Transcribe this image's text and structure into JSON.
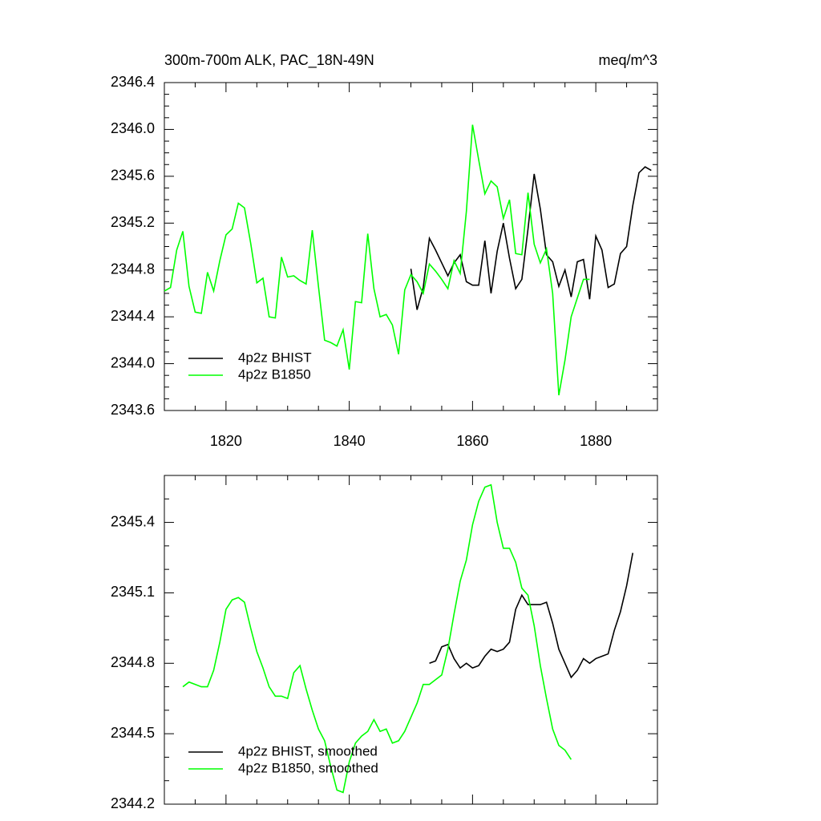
{
  "chart_data": [
    {
      "type": "line",
      "title": "300m-700m ALK, PAC_18N-49N",
      "units": "meq/m^3",
      "xlim": [
        1810,
        1890
      ],
      "xticks": [
        1820,
        1840,
        1860,
        1880
      ],
      "xminorticks": [
        1815,
        1825,
        1830,
        1835,
        1845,
        1850,
        1855,
        1865,
        1870,
        1875,
        1885
      ],
      "ylim": [
        2343.6,
        2346.4
      ],
      "yticks": [
        {
          "value": 2343.6,
          "label": "2343.6"
        },
        {
          "value": 2344,
          "label": "2344.0"
        },
        {
          "value": 2344.4,
          "label": "2344.4"
        },
        {
          "value": 2344.8,
          "label": "2344.8"
        },
        {
          "value": 2345.2,
          "label": "2345.2"
        },
        {
          "value": 2345.6,
          "label": "2345.6"
        },
        {
          "value": 2346,
          "label": "2346.0"
        },
        {
          "value": 2346.4,
          "label": "2346.4"
        }
      ],
      "yminorticks": [
        2343.7,
        2343.8,
        2343.9,
        2344.1,
        2344.2,
        2344.3,
        2344.5,
        2344.6,
        2344.7,
        2344.9,
        2345.0,
        2345.1,
        2345.3,
        2345.4,
        2345.5,
        2345.7,
        2345.8,
        2345.9,
        2346.1,
        2346.2,
        2346.3
      ],
      "legend": "lower left",
      "series": [
        {
          "name": "4p2z BHIST",
          "color": "#000000",
          "x": [
            1850,
            1851,
            1852,
            1853,
            1854,
            1855,
            1856,
            1857,
            1858,
            1859,
            1860,
            1861,
            1862,
            1863,
            1864,
            1865,
            1866,
            1867,
            1868,
            1869,
            1870,
            1871,
            1872,
            1873,
            1874,
            1875,
            1876,
            1877,
            1878,
            1879,
            1880,
            1881,
            1882,
            1883,
            1884,
            1885,
            1886,
            1887,
            1888,
            1889
          ],
          "values": [
            2344.81,
            2344.46,
            2344.65,
            2345.07,
            2344.97,
            2344.86,
            2344.75,
            2344.86,
            2344.93,
            2344.7,
            2344.67,
            2344.67,
            2345.05,
            2344.6,
            2344.96,
            2345.2,
            2344.9,
            2344.64,
            2344.72,
            2345.15,
            2345.62,
            2345.32,
            2344.93,
            2344.87,
            2344.66,
            2344.8,
            2344.57,
            2344.87,
            2344.89,
            2344.55,
            2345.09,
            2344.97,
            2344.65,
            2344.68,
            2344.94,
            2345.0,
            2345.35,
            2345.63,
            2345.68,
            2345.65
          ]
        },
        {
          "name": "4p2z B1850",
          "color": "#00ff00",
          "x": [
            1810,
            1811,
            1812,
            1813,
            1814,
            1815,
            1816,
            1817,
            1818,
            1819,
            1820,
            1821,
            1822,
            1823,
            1824,
            1825,
            1826,
            1827,
            1828,
            1829,
            1830,
            1831,
            1832,
            1833,
            1834,
            1835,
            1836,
            1837,
            1838,
            1839,
            1840,
            1841,
            1842,
            1843,
            1844,
            1845,
            1846,
            1847,
            1848,
            1849,
            1850,
            1851,
            1852,
            1853,
            1854,
            1855,
            1856,
            1857,
            1858,
            1859,
            1860,
            1861,
            1862,
            1863,
            1864,
            1865,
            1866,
            1867,
            1868,
            1869,
            1870,
            1871,
            1872,
            1873,
            1874,
            1875,
            1876,
            1877,
            1878,
            1879
          ],
          "values": [
            2344.62,
            2344.65,
            2344.97,
            2345.13,
            2344.66,
            2344.44,
            2344.43,
            2344.78,
            2344.62,
            2344.88,
            2345.1,
            2345.15,
            2345.37,
            2345.33,
            2345.03,
            2344.69,
            2344.73,
            2344.4,
            2344.39,
            2344.91,
            2344.74,
            2344.75,
            2344.71,
            2344.68,
            2345.14,
            2344.66,
            2344.2,
            2344.18,
            2344.15,
            2344.29,
            2343.95,
            2344.53,
            2344.52,
            2345.11,
            2344.64,
            2344.4,
            2344.42,
            2344.33,
            2344.08,
            2344.63,
            2344.76,
            2344.7,
            2344.6,
            2344.85,
            2344.79,
            2344.72,
            2344.64,
            2344.88,
            2344.77,
            2345.3,
            2346.04,
            2345.74,
            2345.45,
            2345.56,
            2345.51,
            2345.24,
            2345.4,
            2344.94,
            2344.93,
            2345.46,
            2345.02,
            2344.86,
            2344.98,
            2344.6,
            2343.73,
            2344.03,
            2344.4,
            2344.56,
            2344.72,
            2344.72
          ]
        }
      ]
    },
    {
      "type": "line",
      "xlim": [
        1810,
        1890
      ],
      "ylim": [
        2344.2,
        2345.6
      ],
      "yticks": [
        2344.2,
        2344.5,
        2344.8,
        2345.1,
        2345.4
      ],
      "yminorticks": [
        2344.3,
        2344.4,
        2344.6,
        2344.7,
        2344.9,
        2345.0,
        2345.2,
        2345.3,
        2345.5
      ],
      "legend": "lower left",
      "series": [
        {
          "name": "4p2z BHIST, smoothed",
          "color": "#000000",
          "x": [
            1853,
            1854,
            1855,
            1856,
            1857,
            1858,
            1859,
            1860,
            1861,
            1862,
            1863,
            1864,
            1865,
            1866,
            1867,
            1868,
            1869,
            1870,
            1871,
            1872,
            1873,
            1874,
            1875,
            1876,
            1877,
            1878,
            1879,
            1880,
            1881,
            1882,
            1883,
            1884,
            1885,
            1886
          ],
          "values": [
            2344.8,
            2344.81,
            2344.87,
            2344.88,
            2344.82,
            2344.78,
            2344.8,
            2344.78,
            2344.79,
            2344.83,
            2344.86,
            2344.85,
            2344.86,
            2344.89,
            2345.03,
            2345.09,
            2345.05,
            2345.05,
            2345.05,
            2345.06,
            2344.97,
            2344.86,
            2344.8,
            2344.74,
            2344.77,
            2344.82,
            2344.8,
            2344.82,
            2344.83,
            2344.84,
            2344.94,
            2345.02,
            2345.13,
            2345.27
          ]
        },
        {
          "name": "4p2z B1850, smoothed",
          "color": "#00ff00",
          "x": [
            1813,
            1814,
            1815,
            1816,
            1817,
            1818,
            1819,
            1820,
            1821,
            1822,
            1823,
            1824,
            1825,
            1826,
            1827,
            1828,
            1829,
            1830,
            1831,
            1832,
            1833,
            1834,
            1835,
            1836,
            1837,
            1838,
            1839,
            1840,
            1841,
            1842,
            1843,
            1844,
            1845,
            1846,
            1847,
            1848,
            1849,
            1850,
            1851,
            1852,
            1853,
            1854,
            1855,
            1856,
            1857,
            1858,
            1859,
            1860,
            1861,
            1862,
            1863,
            1864,
            1865,
            1866,
            1867,
            1868,
            1869,
            1870,
            1871,
            1872,
            1873,
            1874,
            1875,
            1876
          ],
          "values": [
            2344.7,
            2344.72,
            2344.71,
            2344.7,
            2344.7,
            2344.77,
            2344.89,
            2345.03,
            2345.07,
            2345.08,
            2345.06,
            2344.95,
            2344.85,
            2344.78,
            2344.7,
            2344.66,
            2344.66,
            2344.65,
            2344.76,
            2344.79,
            2344.69,
            2344.6,
            2344.52,
            2344.47,
            2344.36,
            2344.26,
            2344.25,
            2344.38,
            2344.46,
            2344.49,
            2344.51,
            2344.56,
            2344.51,
            2344.52,
            2344.46,
            2344.47,
            2344.51,
            2344.57,
            2344.63,
            2344.71,
            2344.71,
            2344.73,
            2344.75,
            2344.86,
            2345.01,
            2345.15,
            2345.24,
            2345.39,
            2345.49,
            2345.55,
            2345.56,
            2345.4,
            2345.29,
            2345.29,
            2345.23,
            2345.12,
            2345.09,
            2344.96,
            2344.79,
            2344.65,
            2344.52,
            2344.45,
            2344.43,
            2344.39
          ]
        }
      ]
    }
  ]
}
